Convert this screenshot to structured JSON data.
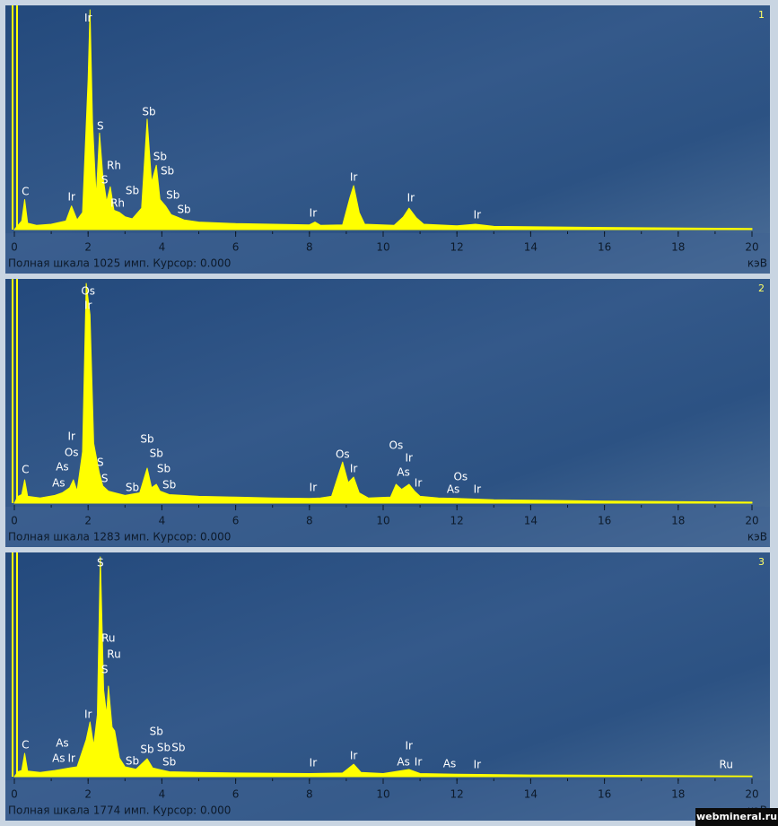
{
  "chart_data": [
    {
      "type": "area",
      "panel_label": "1",
      "footer": "Полная шкала 1025 имп. Курсор: 0.000",
      "x_unit_label": "кэВ",
      "color": "#ffff00",
      "xlim": [
        0,
        20
      ],
      "ylim": [
        0,
        1025
      ],
      "xticks": [
        0,
        2,
        4,
        6,
        8,
        10,
        12,
        14,
        16,
        18,
        20
      ],
      "x": [
        0,
        0.1,
        0.2,
        0.28,
        0.36,
        0.6,
        1.0,
        1.4,
        1.55,
        1.7,
        1.85,
        2.0,
        2.05,
        2.12,
        2.22,
        2.31,
        2.4,
        2.5,
        2.6,
        2.7,
        2.85,
        3.0,
        3.2,
        3.45,
        3.6,
        3.72,
        3.85,
        3.95,
        4.1,
        4.25,
        4.4,
        4.6,
        5.0,
        6.0,
        7.0,
        8.0,
        8.15,
        8.3,
        8.9,
        9.1,
        9.2,
        9.35,
        9.5,
        10.3,
        10.55,
        10.7,
        10.9,
        11.1,
        12.0,
        12.5,
        13,
        16,
        20
      ],
      "values": [
        0,
        20,
        40,
        140,
        30,
        20,
        25,
        40,
        110,
        45,
        80,
        700,
        1025,
        500,
        150,
        450,
        250,
        130,
        200,
        90,
        80,
        60,
        50,
        100,
        515,
        220,
        300,
        140,
        110,
        70,
        60,
        45,
        35,
        28,
        25,
        22,
        35,
        20,
        22,
        150,
        205,
        80,
        25,
        20,
        60,
        100,
        55,
        25,
        18,
        25,
        15,
        10,
        5
      ],
      "annotations": [
        {
          "text": "Ir",
          "x": 2.0,
          "y": 985
        },
        {
          "text": "S",
          "x": 2.33,
          "y": 481
        },
        {
          "text": "Rh",
          "x": 2.7,
          "y": 297
        },
        {
          "text": "S",
          "x": 2.45,
          "y": 230
        },
        {
          "text": "Rh",
          "x": 2.8,
          "y": 121
        },
        {
          "text": "Sb",
          "x": 3.2,
          "y": 180
        },
        {
          "text": "Sb",
          "x": 3.65,
          "y": 548
        },
        {
          "text": "Sb",
          "x": 3.95,
          "y": 339
        },
        {
          "text": "Sb",
          "x": 4.15,
          "y": 272
        },
        {
          "text": "Sb",
          "x": 4.3,
          "y": 159
        },
        {
          "text": "Sb",
          "x": 4.6,
          "y": 92
        },
        {
          "text": "C",
          "x": 0.3,
          "y": 176
        },
        {
          "text": "Ir",
          "x": 1.55,
          "y": 150
        },
        {
          "text": "Ir",
          "x": 8.1,
          "y": 75
        },
        {
          "text": "Ir",
          "x": 9.2,
          "y": 243
        },
        {
          "text": "Ir",
          "x": 10.75,
          "y": 146
        },
        {
          "text": "Ir",
          "x": 12.55,
          "y": 67
        }
      ]
    },
    {
      "type": "area",
      "panel_label": "2",
      "footer": "Полная шкала 1283 имп. Курсор: 0.000",
      "x_unit_label": "кэВ",
      "color": "#ffff00",
      "xlim": [
        0,
        20
      ],
      "ylim": [
        0,
        1283
      ],
      "xticks": [
        0,
        2,
        4,
        6,
        8,
        10,
        12,
        14,
        16,
        18,
        20
      ],
      "x": [
        0,
        0.1,
        0.2,
        0.28,
        0.36,
        0.7,
        1.1,
        1.3,
        1.5,
        1.6,
        1.7,
        1.85,
        1.95,
        2.05,
        2.15,
        2.3,
        2.4,
        2.55,
        3.0,
        3.4,
        3.6,
        3.72,
        3.85,
        3.95,
        4.2,
        5,
        6,
        7,
        8,
        8.3,
        8.6,
        8.9,
        9.05,
        9.2,
        9.35,
        9.6,
        10.2,
        10.35,
        10.5,
        10.7,
        10.85,
        11.0,
        11.5,
        12,
        13,
        16,
        20
      ],
      "values": [
        0,
        40,
        50,
        136,
        40,
        30,
        45,
        60,
        90,
        136,
        70,
        300,
        1283,
        1100,
        350,
        180,
        100,
        70,
        45,
        60,
        204,
        90,
        110,
        70,
        50,
        40,
        35,
        30,
        28,
        30,
        40,
        240,
        120,
        152,
        60,
        30,
        35,
        110,
        80,
        110,
        70,
        40,
        30,
        28,
        20,
        12,
        6
      ],
      "annotations": [
        {
          "text": "Os",
          "x": 2.0,
          "y": 1236
        },
        {
          "text": "Ir",
          "x": 2.0,
          "y": 1152
        },
        {
          "text": "C",
          "x": 0.3,
          "y": 194
        },
        {
          "text": "As",
          "x": 1.3,
          "y": 209
        },
        {
          "text": "Os",
          "x": 1.55,
          "y": 293
        },
        {
          "text": "Ir",
          "x": 1.55,
          "y": 387
        },
        {
          "text": "As",
          "x": 1.2,
          "y": 115
        },
        {
          "text": "S",
          "x": 2.33,
          "y": 236
        },
        {
          "text": "S",
          "x": 2.45,
          "y": 141
        },
        {
          "text": "Sb",
          "x": 3.2,
          "y": 89
        },
        {
          "text": "Sb",
          "x": 3.6,
          "y": 372
        },
        {
          "text": "Sb",
          "x": 3.85,
          "y": 288
        },
        {
          "text": "Sb",
          "x": 4.05,
          "y": 199
        },
        {
          "text": "Sb",
          "x": 4.2,
          "y": 105
        },
        {
          "text": "Ir",
          "x": 8.1,
          "y": 89
        },
        {
          "text": "Os",
          "x": 8.9,
          "y": 283
        },
        {
          "text": "Ir",
          "x": 9.2,
          "y": 199
        },
        {
          "text": "Os",
          "x": 10.35,
          "y": 335
        },
        {
          "text": "Ir",
          "x": 10.7,
          "y": 262
        },
        {
          "text": "As",
          "x": 10.55,
          "y": 178
        },
        {
          "text": "Ir",
          "x": 10.95,
          "y": 115
        },
        {
          "text": "As",
          "x": 11.9,
          "y": 79
        },
        {
          "text": "Os",
          "x": 12.1,
          "y": 152
        },
        {
          "text": "Ir",
          "x": 12.55,
          "y": 79
        }
      ]
    },
    {
      "type": "area",
      "panel_label": "3",
      "footer": "Полная шкала 1774 имп. Курсор: 0.000",
      "x_unit_label": "кэВ",
      "color": "#ffff00",
      "xlim": [
        0,
        20
      ],
      "ylim": [
        0,
        1774
      ],
      "xticks": [
        0,
        2,
        4,
        6,
        8,
        10,
        12,
        14,
        16,
        18,
        20
      ],
      "x": [
        0,
        0.1,
        0.2,
        0.28,
        0.36,
        0.7,
        1.1,
        1.5,
        1.7,
        1.95,
        2.05,
        2.15,
        2.25,
        2.33,
        2.42,
        2.5,
        2.55,
        2.65,
        2.72,
        2.85,
        3.0,
        3.3,
        3.6,
        3.75,
        3.9,
        4.2,
        5,
        6,
        8,
        8.9,
        9.2,
        9.4,
        10,
        10.7,
        11,
        12,
        14,
        20
      ],
      "values": [
        0,
        40,
        50,
        188,
        45,
        35,
        50,
        70,
        80,
        300,
        442,
        250,
        500,
        1774,
        700,
        500,
        731,
        400,
        370,
        150,
        80,
        60,
        145,
        70,
        60,
        40,
        35,
        30,
        25,
        30,
        101,
        35,
        25,
        58,
        25,
        20,
        14,
        6
      ],
      "annotations": [
        {
          "text": "S",
          "x": 2.33,
          "y": 1723
        },
        {
          "text": "Ru",
          "x": 2.55,
          "y": 1115
        },
        {
          "text": "Ru",
          "x": 2.7,
          "y": 985
        },
        {
          "text": "S",
          "x": 2.45,
          "y": 862
        },
        {
          "text": "Ir",
          "x": 2.0,
          "y": 500
        },
        {
          "text": "As",
          "x": 1.3,
          "y": 268
        },
        {
          "text": "As",
          "x": 1.2,
          "y": 145
        },
        {
          "text": "Ir",
          "x": 1.55,
          "y": 145
        },
        {
          "text": "C",
          "x": 0.3,
          "y": 253
        },
        {
          "text": "Sb",
          "x": 3.2,
          "y": 123
        },
        {
          "text": "Sb",
          "x": 3.6,
          "y": 217
        },
        {
          "text": "Sb",
          "x": 3.85,
          "y": 362
        },
        {
          "text": "Sb",
          "x": 4.05,
          "y": 232
        },
        {
          "text": "Sb",
          "x": 4.45,
          "y": 232
        },
        {
          "text": "Sb",
          "x": 4.2,
          "y": 116
        },
        {
          "text": "Ir",
          "x": 8.1,
          "y": 109
        },
        {
          "text": "Ir",
          "x": 9.2,
          "y": 166
        },
        {
          "text": "Ir",
          "x": 10.7,
          "y": 246
        },
        {
          "text": "As",
          "x": 10.55,
          "y": 116
        },
        {
          "text": "Ir",
          "x": 10.95,
          "y": 116
        },
        {
          "text": "As",
          "x": 11.8,
          "y": 101
        },
        {
          "text": "Ir",
          "x": 12.55,
          "y": 94
        },
        {
          "text": "Ru",
          "x": 19.3,
          "y": 94
        }
      ]
    }
  ],
  "watermark": "webmineral.ru"
}
